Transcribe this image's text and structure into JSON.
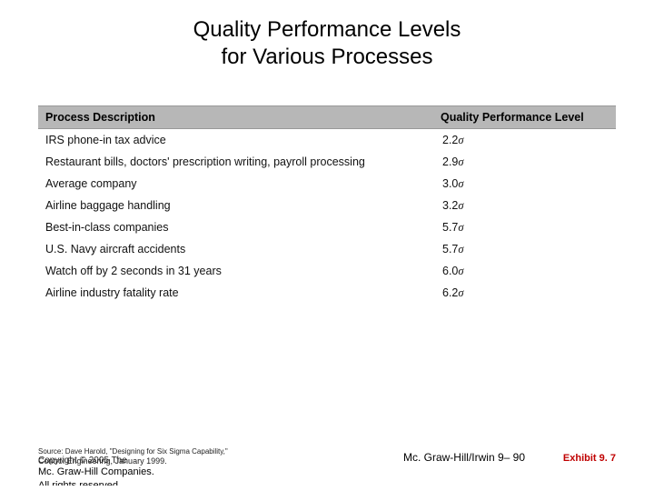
{
  "title_line1": "Quality Performance Levels",
  "title_line2": "for Various Processes",
  "headers": {
    "desc": "Process Description",
    "level": "Quality Performance Level"
  },
  "rows": [
    {
      "desc": "IRS phone-in tax advice",
      "level": "2.2"
    },
    {
      "desc": "Restaurant bills, doctors' prescription writing, payroll processing",
      "level": "2.9"
    },
    {
      "desc": "Average company",
      "level": "3.0"
    },
    {
      "desc": "Airline baggage handling",
      "level": "3.2"
    },
    {
      "desc": "Best-in-class companies",
      "level": "5.7"
    },
    {
      "desc": "U.S. Navy aircraft accidents",
      "level": "5.7"
    },
    {
      "desc": "Watch off by 2 seconds in 31 years",
      "level": "6.0"
    },
    {
      "desc": "Airline industry fatality rate",
      "level": "6.2"
    }
  ],
  "sigma": "σ",
  "footer": {
    "source_line1": "Source: Dave Harold, \"Designing for Six Sigma Capability,\"",
    "source_line2": "Control Engineering, January 1999.",
    "copyright_overlay": "Copyright © 2005 The",
    "center": "Mc. Graw-Hill/Irwin  9– 90",
    "companies": "Mc. Graw-Hill Companies.",
    "cut": "All rights reserved",
    "exhibit": "Exhibit 9. 7"
  },
  "colors": {
    "header_bg": "#b7b7b7",
    "exhibit_color": "#c00000",
    "text": "#000000",
    "bg": "#ffffff"
  },
  "typography": {
    "title_fontsize": 24,
    "row_fontsize": 12.5,
    "footer_small": 8,
    "exhibit_fontsize": 11
  }
}
